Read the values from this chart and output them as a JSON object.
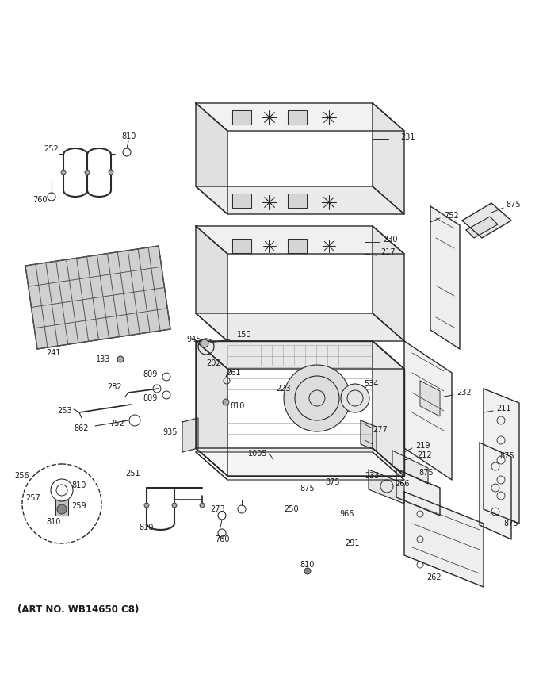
{
  "bg_color": "#ffffff",
  "line_color": "#2a2a2a",
  "label_color": "#1a1a1a",
  "art_no": "(ART NO. WB14650 C8)"
}
